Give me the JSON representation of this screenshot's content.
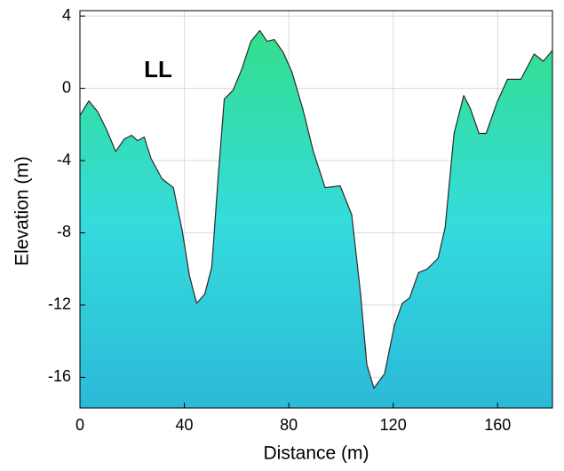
{
  "chart_data": {
    "type": "area",
    "annotation": "LL",
    "x_label": "Distance (m)",
    "y_label": "Elevation (m)",
    "x": [
      0,
      3.4,
      6.8,
      10.2,
      13.7,
      17,
      19.8,
      22,
      24.6,
      27.3,
      31.4,
      35.8,
      39.2,
      42,
      44.7,
      47.8,
      50.5,
      52.9,
      55.3,
      58.7,
      62.1,
      65.5,
      68.9,
      71.7,
      74.4,
      77.8,
      81.2,
      85.3,
      89.4,
      93.9,
      99.7,
      104.1,
      107.5,
      109.9,
      112.6,
      116.7,
      120.5,
      123.5,
      126.3,
      129.7,
      133.1,
      137.2,
      139.9,
      143.3,
      147,
      149.5,
      152.9,
      155.6,
      159.7,
      163.8,
      168.9,
      174,
      177.5,
      181
    ],
    "values": [
      -1.5,
      -0.7,
      -1.3,
      -2.3,
      -3.5,
      -2.8,
      -2.6,
      -2.9,
      -2.7,
      -3.9,
      -5.0,
      -5.5,
      -7.9,
      -10.4,
      -11.9,
      -11.4,
      -9.9,
      -5.0,
      -0.6,
      -0.1,
      1.1,
      2.6,
      3.2,
      2.6,
      2.7,
      2.0,
      0.9,
      -1.1,
      -3.5,
      -5.5,
      -5.4,
      -7.0,
      -11.4,
      -15.3,
      -16.6,
      -15.8,
      -13.1,
      -11.9,
      -11.6,
      -10.2,
      -10.0,
      -9.4,
      -7.7,
      -2.5,
      -0.4,
      -1.1,
      -2.5,
      -2.5,
      -0.8,
      0.5,
      0.5,
      1.9,
      1.5,
      2.1
    ],
    "colors": [
      "#34de8c",
      "#34dcdc",
      "#2cb9d9"
    ],
    "line_color": "#2a2a2a",
    "xlim": [
      0,
      181
    ],
    "xticks": [
      0,
      40,
      80,
      120,
      160
    ],
    "ylim": [
      -17.7,
      4.3
    ],
    "yticks": [
      4,
      0,
      -4,
      -8,
      -12,
      -16
    ],
    "grid": true
  }
}
